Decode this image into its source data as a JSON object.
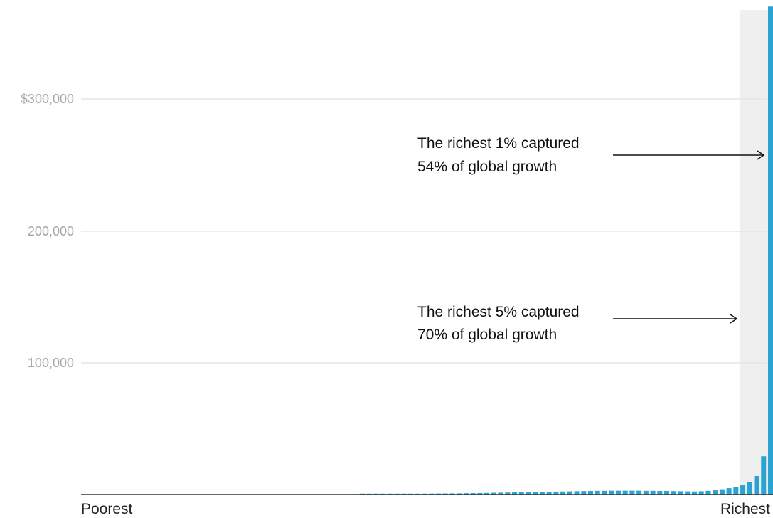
{
  "chart_data": {
    "type": "bar",
    "title": "",
    "xlabel": "",
    "ylabel": "",
    "x_start_label": "Poorest",
    "x_end_label": "Richest",
    "ylim": [
      0,
      380000
    ],
    "y_ticks": [
      {
        "value": 300000,
        "label": "$300,000"
      },
      {
        "value": 200000,
        "label": "200,000"
      },
      {
        "value": 100000,
        "label": "100,000"
      }
    ],
    "grid": true,
    "colors": {
      "bar": "#2aa3d3",
      "highlight_band": "#efefef",
      "grid": "#e6e6e6",
      "axis": "#333333"
    },
    "highlight_band_from_percentile": 95,
    "values": [
      0,
      0,
      0,
      0,
      0,
      0,
      0,
      0,
      0,
      0,
      0,
      0,
      0,
      0,
      0,
      0,
      0,
      0,
      0,
      0,
      0,
      0,
      0,
      0,
      0,
      0,
      0,
      0,
      0,
      0,
      0,
      0,
      0,
      0,
      0,
      0,
      0,
      0,
      0,
      0,
      300,
      300,
      300,
      350,
      350,
      400,
      400,
      450,
      450,
      500,
      700,
      750,
      800,
      850,
      900,
      1000,
      1050,
      1100,
      1200,
      1300,
      1400,
      1500,
      1600,
      1700,
      1800,
      1900,
      2000,
      2100,
      2200,
      2300,
      2400,
      2500,
      2600,
      2700,
      2800,
      2800,
      2900,
      2900,
      2900,
      2900,
      2900,
      2800,
      2800,
      2700,
      2700,
      2600,
      2500,
      2400,
      2300,
      2500,
      2800,
      3200,
      4000,
      4800,
      5500,
      7000,
      9500,
      14000,
      29000,
      370000
    ],
    "annotations": [
      {
        "text": [
          "The richest 1% captured",
          "54% of global growth"
        ],
        "points_to_bar": 100,
        "value": 267000
      },
      {
        "text": [
          "The richest 5% captured",
          "70% of global growth"
        ],
        "points_to_band_from_bar": 95,
        "value": 147000
      }
    ]
  }
}
